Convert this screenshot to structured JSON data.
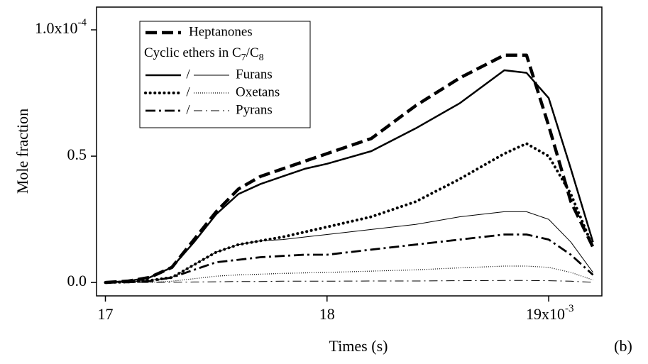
{
  "chart_data": {
    "type": "line",
    "xlabel": "Times (s)",
    "ylabel": "Mole fraction",
    "panel_label": "(b)",
    "xlim": [
      16.96,
      19.24
    ],
    "ylim": [
      -0.053,
      1.09
    ],
    "xticks": [
      17,
      18,
      {
        "value": 19,
        "label": "19x10",
        "sup": "-3"
      }
    ],
    "yticks": [
      {
        "value": 0,
        "label": "0.0"
      },
      {
        "value": 0.5,
        "label": "0.5"
      },
      {
        "value": 1.0,
        "label": "1.0x10",
        "sup": "-4"
      }
    ],
    "grid": false,
    "color": "#000000",
    "legend_position": "upper left",
    "legend_heading": [
      "Cyclic ethers in C",
      "7",
      "/C",
      "8"
    ],
    "legend_separator": "/",
    "x": [
      17.0,
      17.1,
      17.2,
      17.3,
      17.4,
      17.5,
      17.6,
      17.7,
      17.8,
      17.9,
      18.0,
      18.2,
      18.4,
      18.6,
      18.8,
      18.9,
      19.0,
      19.1,
      19.2
    ],
    "series": [
      {
        "name": "Heptanones",
        "values": [
          0,
          0.005,
          0.02,
          0.06,
          0.17,
          0.28,
          0.37,
          0.42,
          0.45,
          0.48,
          0.51,
          0.57,
          0.7,
          0.81,
          0.9,
          0.9,
          0.62,
          0.32,
          0.14
        ]
      },
      {
        "name": "Furans",
        "values": [
          0,
          0.005,
          0.02,
          0.06,
          0.16,
          0.27,
          0.35,
          0.39,
          0.42,
          0.45,
          0.47,
          0.52,
          0.61,
          0.71,
          0.84,
          0.83,
          0.73,
          0.45,
          0.16
        ],
        "values_thin": [
          0,
          0.002,
          0.008,
          0.02,
          0.07,
          0.12,
          0.15,
          0.165,
          0.17,
          0.18,
          0.19,
          0.21,
          0.23,
          0.26,
          0.28,
          0.28,
          0.25,
          0.16,
          0.04
        ]
      },
      {
        "name": "Oxetans",
        "values": [
          0,
          0.002,
          0.008,
          0.02,
          0.07,
          0.12,
          0.15,
          0.165,
          0.18,
          0.2,
          0.22,
          0.26,
          0.32,
          0.41,
          0.51,
          0.55,
          0.5,
          0.35,
          0.14
        ],
        "values_thin": [
          0,
          0,
          0.001,
          0.005,
          0.015,
          0.025,
          0.03,
          0.033,
          0.036,
          0.038,
          0.04,
          0.045,
          0.05,
          0.058,
          0.065,
          0.065,
          0.06,
          0.04,
          0.01
        ]
      },
      {
        "name": "Pyrans",
        "values": [
          0,
          0.001,
          0.005,
          0.02,
          0.05,
          0.08,
          0.09,
          0.1,
          0.105,
          0.11,
          0.11,
          0.13,
          0.15,
          0.17,
          0.19,
          0.19,
          0.17,
          0.11,
          0.03
        ],
        "values_thin": [
          0,
          0,
          0,
          0.001,
          0.002,
          0.003,
          0.004,
          0.004,
          0.005,
          0.005,
          0.005,
          0.006,
          0.006,
          0.007,
          0.008,
          0.008,
          0.007,
          0.005,
          0.001
        ]
      }
    ]
  }
}
